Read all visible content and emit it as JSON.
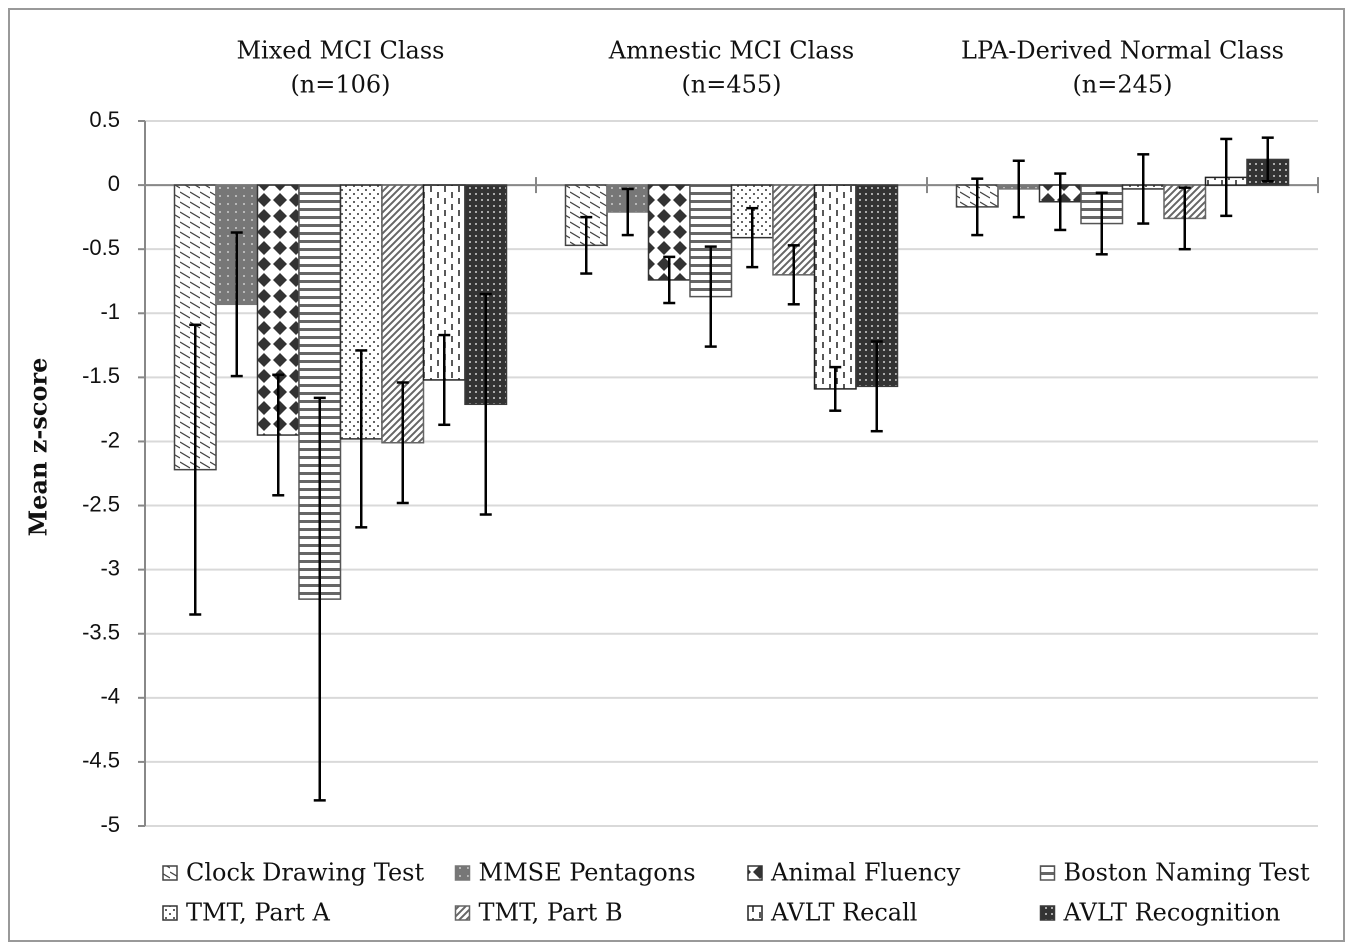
{
  "chart_data": {
    "type": "bar",
    "y_label": "Mean z-score",
    "categories": [
      [
        "Mixed MCI Class",
        "(n=106)"
      ],
      [
        "Amnestic MCI Class",
        "(n=455)"
      ],
      [
        "LPA-Derived Normal Class",
        "(n=245)"
      ]
    ],
    "ylim": [
      -5,
      0.5
    ],
    "yticks": [
      0.5,
      0,
      -0.5,
      -1,
      -1.5,
      -2,
      -2.5,
      -3,
      -3.5,
      -4,
      -4.5,
      -5
    ],
    "grid": true,
    "series": [
      {
        "name": "Clock Drawing Test",
        "color": "#444444",
        "values": [
          -2.22,
          -0.47,
          -0.17
        ],
        "errors": [
          1.13,
          0.22,
          0.22
        ]
      },
      {
        "name": "MMSE Pentagons",
        "color": "#777777",
        "values": [
          -0.93,
          -0.21,
          -0.03
        ],
        "errors": [
          0.56,
          0.18,
          0.22
        ]
      },
      {
        "name": "Animal Fluency",
        "color": "#333333",
        "values": [
          -1.95,
          -0.74,
          -0.13
        ],
        "errors": [
          0.47,
          0.18,
          0.22
        ]
      },
      {
        "name": "Boston Naming Test",
        "color": "#555555",
        "values": [
          -3.23,
          -0.87,
          -0.3
        ],
        "errors": [
          1.57,
          0.39,
          0.24
        ]
      },
      {
        "name": "TMT, Part A",
        "color": "#333333",
        "values": [
          -1.98,
          -0.41,
          -0.03
        ],
        "errors": [
          0.69,
          0.23,
          0.27
        ]
      },
      {
        "name": "TMT, Part B",
        "color": "#666666",
        "values": [
          -2.01,
          -0.7,
          -0.26
        ],
        "errors": [
          0.47,
          0.23,
          0.24
        ]
      },
      {
        "name": "AVLT Recall",
        "color": "#222222",
        "values": [
          -1.52,
          -1.59,
          0.06
        ],
        "errors": [
          0.35,
          0.17,
          0.3
        ]
      },
      {
        "name": "AVLT Recognition",
        "color": "#3a3a3a",
        "values": [
          -1.71,
          -1.57,
          0.2
        ],
        "errors": [
          0.86,
          0.35,
          0.17
        ]
      }
    ]
  }
}
